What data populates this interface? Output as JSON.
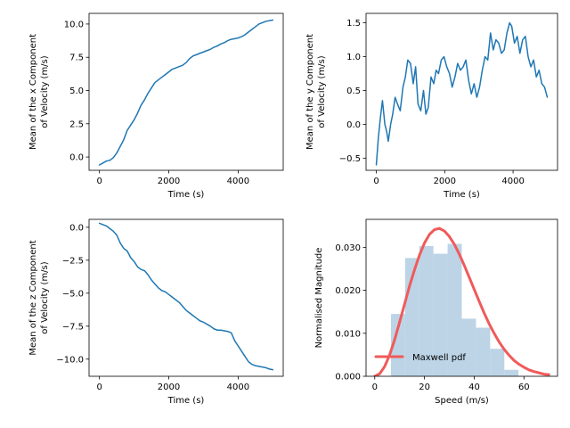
{
  "colors": {
    "line": "#1f77b4",
    "bars": "#bcd4e6",
    "pdf": "#f05a5a",
    "axes": "#000000",
    "background": "#ffffff"
  },
  "chart_data": [
    {
      "type": "line",
      "panel": "top-left",
      "xlabel": "Time (s)",
      "ylabel": [
        "Mean of the x Component",
        "of Velocity (m/s)"
      ],
      "xlim": [
        -300,
        5300
      ],
      "ylim": [
        -1.0,
        10.8
      ],
      "xticks": [
        0,
        2000,
        4000
      ],
      "xtick_labels": [
        "0",
        "2000",
        "4000"
      ],
      "yticks": [
        0.0,
        2.5,
        5.0,
        7.5,
        10.0
      ],
      "ytick_labels": [
        "0.0",
        "2.5",
        "5.0",
        "7.5",
        "10.0"
      ],
      "grid": false,
      "series": [
        {
          "x": [
            0,
            100,
            200,
            300,
            400,
            500,
            600,
            700,
            800,
            900,
            1000,
            1100,
            1200,
            1300,
            1400,
            1500,
            1600,
            1700,
            1800,
            1900,
            2000,
            2100,
            2200,
            2300,
            2400,
            2500,
            2600,
            2700,
            2800,
            2900,
            3000,
            3100,
            3200,
            3300,
            3400,
            3500,
            3600,
            3700,
            3800,
            3900,
            4000,
            4100,
            4200,
            4300,
            4400,
            4500,
            4600,
            4700,
            4800,
            4900,
            5000
          ],
          "y": [
            -0.6,
            -0.45,
            -0.3,
            -0.25,
            -0.05,
            0.3,
            0.8,
            1.3,
            2.0,
            2.4,
            2.8,
            3.3,
            3.9,
            4.3,
            4.8,
            5.2,
            5.6,
            5.8,
            6.0,
            6.2,
            6.4,
            6.6,
            6.7,
            6.8,
            6.9,
            7.1,
            7.4,
            7.6,
            7.7,
            7.8,
            7.9,
            8.0,
            8.1,
            8.25,
            8.35,
            8.5,
            8.6,
            8.75,
            8.85,
            8.9,
            8.95,
            9.05,
            9.2,
            9.4,
            9.6,
            9.8,
            10.0,
            10.1,
            10.2,
            10.25,
            10.3
          ]
        }
      ]
    },
    {
      "type": "line",
      "panel": "top-right",
      "xlabel": "Time (s)",
      "ylabel": [
        "Mean of the y Component",
        "of Velocity (m/s)"
      ],
      "xlim": [
        -300,
        5300
      ],
      "ylim": [
        -0.68,
        1.64
      ],
      "xticks": [
        0,
        2000,
        4000
      ],
      "xtick_labels": [
        "0",
        "2000",
        "4000"
      ],
      "yticks": [
        -0.5,
        0.0,
        0.5,
        1.0,
        1.5
      ],
      "ytick_labels": [
        "−0.5",
        "0.0",
        "0.5",
        "1.0",
        "1.5"
      ],
      "grid": false,
      "series": [
        {
          "x": [
            0,
            60,
            120,
            180,
            250,
            300,
            350,
            420,
            480,
            550,
            620,
            700,
            780,
            850,
            920,
            1000,
            1080,
            1150,
            1220,
            1300,
            1380,
            1450,
            1520,
            1600,
            1680,
            1750,
            1820,
            1900,
            1980,
            2060,
            2140,
            2220,
            2300,
            2380,
            2460,
            2540,
            2620,
            2700,
            2780,
            2860,
            2940,
            3020,
            3100,
            3180,
            3260,
            3340,
            3420,
            3500,
            3580,
            3660,
            3740,
            3820,
            3900,
            3960,
            4040,
            4120,
            4200,
            4280,
            4360,
            4440,
            4520,
            4600,
            4680,
            4760,
            4840,
            4920,
            5000
          ],
          "y": [
            -0.6,
            -0.2,
            0.1,
            0.35,
            0.0,
            -0.1,
            -0.25,
            0.0,
            0.15,
            0.4,
            0.3,
            0.2,
            0.55,
            0.7,
            0.95,
            0.9,
            0.6,
            0.85,
            0.3,
            0.2,
            0.5,
            0.15,
            0.25,
            0.7,
            0.6,
            0.8,
            0.75,
            0.95,
            1.0,
            0.85,
            0.75,
            0.55,
            0.7,
            0.9,
            0.8,
            0.85,
            0.95,
            0.65,
            0.45,
            0.6,
            0.4,
            0.55,
            0.8,
            1.0,
            0.95,
            1.35,
            1.1,
            1.25,
            1.2,
            1.05,
            1.1,
            1.35,
            1.5,
            1.45,
            1.2,
            1.3,
            1.05,
            1.25,
            1.3,
            1.0,
            0.85,
            0.95,
            0.7,
            0.8,
            0.6,
            0.55,
            0.4
          ]
        }
      ]
    },
    {
      "type": "line",
      "panel": "bottom-left",
      "xlabel": "Time (s)",
      "ylabel": [
        "Mean of the z Component",
        "of Velocity (m/s)"
      ],
      "xlim": [
        -300,
        5300
      ],
      "ylim": [
        -11.3,
        0.6
      ],
      "xticks": [
        0,
        2000,
        4000
      ],
      "xtick_labels": [
        "0",
        "2000",
        "4000"
      ],
      "yticks": [
        0.0,
        -2.5,
        -5.0,
        -7.5,
        -10.0
      ],
      "ytick_labels": [
        "0.0",
        "−2.5",
        "−5.0",
        "−7.5",
        "−10.0"
      ],
      "grid": false,
      "series": [
        {
          "x": [
            0,
            100,
            200,
            300,
            400,
            500,
            600,
            700,
            800,
            900,
            1000,
            1100,
            1200,
            1300,
            1400,
            1500,
            1600,
            1700,
            1800,
            1900,
            2000,
            2100,
            2200,
            2300,
            2400,
            2500,
            2600,
            2700,
            2800,
            2900,
            3000,
            3100,
            3200,
            3300,
            3400,
            3500,
            3600,
            3700,
            3800,
            3900,
            4000,
            4100,
            4200,
            4300,
            4400,
            4500,
            4600,
            4700,
            4800,
            4900,
            5000
          ],
          "y": [
            0.3,
            0.2,
            0.1,
            -0.1,
            -0.3,
            -0.6,
            -1.2,
            -1.6,
            -1.8,
            -2.3,
            -2.6,
            -3.0,
            -3.2,
            -3.3,
            -3.6,
            -4.0,
            -4.3,
            -4.6,
            -4.8,
            -4.9,
            -5.1,
            -5.3,
            -5.5,
            -5.7,
            -6.0,
            -6.3,
            -6.5,
            -6.7,
            -6.9,
            -7.1,
            -7.2,
            -7.35,
            -7.5,
            -7.7,
            -7.8,
            -7.8,
            -7.85,
            -7.9,
            -8.0,
            -8.6,
            -9.0,
            -9.4,
            -9.8,
            -10.2,
            -10.4,
            -10.5,
            -10.55,
            -10.6,
            -10.65,
            -10.75,
            -10.8
          ]
        }
      ]
    },
    {
      "type": "bar",
      "panel": "bottom-right",
      "xlabel": "Speed (m/s)",
      "ylabel": [
        "Normalised Magnitude"
      ],
      "xlim": [
        -3.5,
        73.5
      ],
      "ylim": [
        0.0,
        0.0365
      ],
      "xticks": [
        0,
        20,
        40,
        60
      ],
      "xtick_labels": [
        "0",
        "20",
        "40",
        "60"
      ],
      "yticks": [
        0.0,
        0.01,
        0.02,
        0.03
      ],
      "ytick_labels": [
        "0.000",
        "0.010",
        "0.020",
        "0.030"
      ],
      "grid": false,
      "histogram": {
        "bin_edges": [
          6.5,
          12.2,
          17.9,
          23.6,
          29.3,
          35.0,
          40.7,
          46.4,
          52.1,
          57.8
        ],
        "values": [
          0.0145,
          0.0275,
          0.0303,
          0.0285,
          0.0308,
          0.0134,
          0.0113,
          0.0064,
          0.0015
        ]
      },
      "series": [
        {
          "name": "Maxwell pdf",
          "type": "line",
          "x": [
            0,
            2,
            4,
            6,
            8,
            10,
            12,
            14,
            16,
            18,
            20,
            22,
            24,
            26,
            28,
            30,
            32,
            34,
            36,
            38,
            40,
            42,
            44,
            46,
            48,
            50,
            52,
            54,
            56,
            58,
            60,
            62,
            64,
            66,
            68,
            70
          ],
          "y": [
            0.0,
            0.0006,
            0.0023,
            0.005,
            0.0085,
            0.0126,
            0.0168,
            0.021,
            0.0248,
            0.0282,
            0.031,
            0.033,
            0.0341,
            0.0344,
            0.0338,
            0.0325,
            0.0307,
            0.0284,
            0.0258,
            0.023,
            0.0202,
            0.0174,
            0.0147,
            0.0122,
            0.01,
            0.008,
            0.0063,
            0.0049,
            0.0037,
            0.0028,
            0.0021,
            0.0015,
            0.0011,
            0.0008,
            0.0005,
            0.0004
          ]
        }
      ],
      "legend": {
        "placement": "lower-left",
        "entries": [
          "Maxwell pdf"
        ]
      }
    }
  ]
}
